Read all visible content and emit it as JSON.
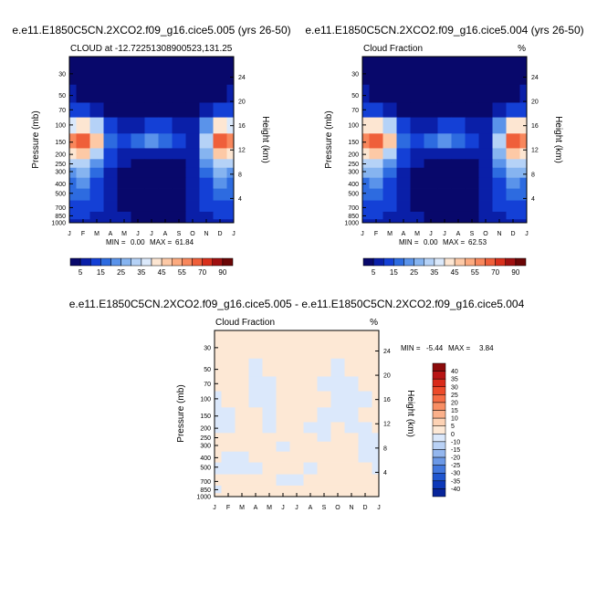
{
  "chart_data": [
    {
      "type": "heatmap",
      "title": "e.e11.E1850C5CN.2XCO2.f09_g16.cice5.005 (yrs 26-50)",
      "subtitle_left": "CLOUD at -12.7225130890052​3,131.25",
      "subtitle_right": "",
      "ylabel": "Pressure (mb)",
      "ylabel_right": "Height (km)",
      "x_ticks": [
        "J",
        "F",
        "M",
        "A",
        "M",
        "J",
        "J",
        "A",
        "S",
        "O",
        "N",
        "D",
        "J"
      ],
      "y_ticks": [
        "30",
        "50",
        "70",
        "100",
        "150",
        "200",
        "250",
        "300",
        "400",
        "500",
        "700",
        "850",
        "1000"
      ],
      "y_ticks_right": [
        "24",
        "20",
        "16",
        "12",
        "8",
        "4"
      ],
      "stats": {
        "min_label": "MIN =",
        "min": "0.00",
        "max_label": "MAX =",
        "max": "61.84"
      },
      "colorbar_labels": [
        "5",
        "15",
        "25",
        "35",
        "45",
        "55",
        "70",
        "90"
      ],
      "colorbar_colors": [
        "#08086b",
        "#0a1fa8",
        "#1440d6",
        "#2d6be0",
        "#5a93ea",
        "#86b4f0",
        "#b5d2f7",
        "#dbe9fb",
        "#fde6d2",
        "#fdc9a6",
        "#fcaa7f",
        "#f8875c",
        "#ef5f3a",
        "#d9301c",
        "#a01010",
        "#6b0606"
      ],
      "values": [
        [
          3,
          3,
          3,
          3,
          3,
          3,
          3,
          3,
          3,
          3,
          3,
          3,
          3
        ],
        [
          5,
          4,
          3,
          3,
          3,
          3,
          3,
          3,
          3,
          3,
          3,
          4,
          5
        ],
        [
          12,
          10,
          6,
          4,
          3,
          3,
          3,
          3,
          3,
          4,
          6,
          10,
          12
        ],
        [
          38,
          42,
          30,
          12,
          6,
          8,
          10,
          10,
          7,
          8,
          20,
          40,
          38
        ],
        [
          55,
          62,
          45,
          15,
          10,
          18,
          24,
          18,
          10,
          9,
          32,
          62,
          55
        ],
        [
          42,
          48,
          34,
          12,
          8,
          6,
          5,
          5,
          6,
          8,
          26,
          48,
          42
        ],
        [
          30,
          34,
          24,
          10,
          5,
          4,
          4,
          4,
          4,
          6,
          20,
          34,
          30
        ],
        [
          24,
          26,
          18,
          9,
          4,
          3,
          3,
          3,
          3,
          5,
          16,
          26,
          24
        ],
        [
          18,
          20,
          14,
          8,
          4,
          3,
          3,
          3,
          3,
          5,
          13,
          20,
          18
        ],
        [
          16,
          17,
          12,
          8,
          4,
          3,
          3,
          3,
          3,
          5,
          12,
          17,
          16
        ],
        [
          13,
          14,
          10,
          7,
          4,
          3,
          3,
          3,
          3,
          5,
          10,
          14,
          13
        ],
        [
          10,
          11,
          9,
          7,
          5,
          4,
          4,
          4,
          4,
          5,
          9,
          11,
          10
        ],
        [
          8,
          9,
          8,
          6,
          5,
          4,
          4,
          4,
          4,
          5,
          8,
          9,
          8
        ]
      ]
    },
    {
      "type": "heatmap",
      "title": "e.e11.E1850C5CN.2XCO2.f09_g16.cice5.004 (yrs 26-50)",
      "subtitle_left": "Cloud Fraction",
      "subtitle_right": "%",
      "ylabel": "Pressure (mb)",
      "ylabel_right": "Height (km)",
      "x_ticks": [
        "J",
        "F",
        "M",
        "A",
        "M",
        "J",
        "J",
        "A",
        "S",
        "O",
        "N",
        "D",
        "J"
      ],
      "y_ticks": [
        "30",
        "50",
        "70",
        "100",
        "150",
        "200",
        "250",
        "300",
        "400",
        "500",
        "700",
        "850",
        "1000"
      ],
      "y_ticks_right": [
        "24",
        "20",
        "16",
        "12",
        "8",
        "4"
      ],
      "stats": {
        "min_label": "MIN =",
        "min": "0.00",
        "max_label": "MAX =",
        "max": "62.53"
      },
      "colorbar_labels": [
        "5",
        "15",
        "25",
        "35",
        "45",
        "55",
        "70",
        "90"
      ],
      "colorbar_colors": [
        "#08086b",
        "#0a1fa8",
        "#1440d6",
        "#2d6be0",
        "#5a93ea",
        "#86b4f0",
        "#b5d2f7",
        "#dbe9fb",
        "#fde6d2",
        "#fdc9a6",
        "#fcaa7f",
        "#f8875c",
        "#ef5f3a",
        "#d9301c",
        "#a01010",
        "#6b0606"
      ],
      "values": [
        [
          3,
          3,
          3,
          3,
          3,
          3,
          3,
          3,
          3,
          3,
          3,
          3,
          3
        ],
        [
          5,
          4,
          3,
          3,
          3,
          3,
          3,
          3,
          3,
          3,
          3,
          4,
          5
        ],
        [
          12,
          10,
          6,
          4,
          3,
          3,
          3,
          3,
          3,
          4,
          6,
          10,
          12
        ],
        [
          40,
          42,
          30,
          12,
          6,
          8,
          10,
          10,
          7,
          8,
          20,
          40,
          40
        ],
        [
          56,
          62,
          45,
          15,
          10,
          18,
          24,
          18,
          10,
          9,
          32,
          62,
          56
        ],
        [
          43,
          48,
          34,
          12,
          8,
          6,
          5,
          5,
          6,
          8,
          26,
          48,
          43
        ],
        [
          31,
          34,
          24,
          10,
          5,
          4,
          4,
          4,
          4,
          6,
          20,
          34,
          31
        ],
        [
          25,
          26,
          18,
          9,
          4,
          3,
          3,
          3,
          3,
          5,
          16,
          26,
          25
        ],
        [
          19,
          20,
          14,
          8,
          4,
          3,
          3,
          3,
          3,
          5,
          13,
          20,
          19
        ],
        [
          17,
          18,
          12,
          8,
          4,
          3,
          3,
          3,
          3,
          5,
          12,
          17,
          17
        ],
        [
          13,
          14,
          10,
          7,
          4,
          3,
          3,
          3,
          3,
          5,
          10,
          14,
          13
        ],
        [
          10,
          11,
          9,
          7,
          5,
          4,
          4,
          4,
          4,
          5,
          9,
          11,
          10
        ],
        [
          8,
          9,
          8,
          6,
          5,
          4,
          4,
          4,
          4,
          5,
          8,
          9,
          8
        ]
      ]
    },
    {
      "type": "heatmap",
      "title": "e.e11.E1850C5CN.2XCO2.f09_g16.cice5.005 - e.e11.E1850C5CN.2XCO2.f09_g16.cice5.004",
      "subtitle_left": "Cloud Fraction",
      "subtitle_right": "%",
      "ylabel": "Pressure (mb)",
      "ylabel_right": "Height (km)",
      "x_ticks": [
        "J",
        "F",
        "M",
        "A",
        "M",
        "J",
        "J",
        "A",
        "S",
        "O",
        "N",
        "D",
        "J"
      ],
      "y_ticks": [
        "30",
        "50",
        "70",
        "100",
        "150",
        "200",
        "250",
        "300",
        "400",
        "500",
        "700",
        "850",
        "1000"
      ],
      "y_ticks_right": [
        "24",
        "20",
        "16",
        "12",
        "8",
        "4"
      ],
      "stats": {
        "min_label": "MIN =",
        "min": "-5.44",
        "max_label": "MAX =",
        "max": "3.84"
      },
      "colorbar_labels": [
        "40",
        "35",
        "30",
        "25",
        "20",
        "15",
        "10",
        "5",
        "0",
        "-10",
        "-15",
        "-20",
        "-25",
        "-30",
        "-35",
        "-40"
      ],
      "colorbar_colors": [
        "#8c0a0a",
        "#b81414",
        "#d92a1a",
        "#ec4a2a",
        "#f56c45",
        "#f88e64",
        "#fbb08a",
        "#fdd2b4",
        "#fde8d5",
        "#dbe8fb",
        "#b9d1f5",
        "#93b6ee",
        "#6b98e6",
        "#4277dd",
        "#1f55cf",
        "#0c38b8",
        "#08259a"
      ],
      "values": [
        [
          1,
          1,
          1,
          1,
          1,
          1,
          1,
          1,
          1,
          1,
          1,
          1,
          1
        ],
        [
          1,
          1,
          1,
          -1,
          1,
          1,
          1,
          1,
          1,
          -1,
          1,
          1,
          1
        ],
        [
          1,
          1,
          1,
          -1,
          -1,
          1,
          1,
          1,
          -1,
          -1,
          -1,
          1,
          1
        ],
        [
          -1,
          1,
          1,
          -1,
          -1,
          1,
          1,
          1,
          1,
          -1,
          -1,
          -1,
          1
        ],
        [
          -1,
          -1,
          1,
          1,
          -1,
          1,
          1,
          1,
          -1,
          -1,
          -1,
          1,
          1
        ],
        [
          -1,
          -1,
          1,
          1,
          -1,
          1,
          1,
          -1,
          -1,
          1,
          -1,
          -1,
          1
        ],
        [
          1,
          1,
          1,
          1,
          1,
          1,
          1,
          1,
          -1,
          1,
          1,
          -1,
          -1
        ],
        [
          1,
          1,
          1,
          1,
          1,
          -1,
          1,
          1,
          1,
          1,
          1,
          -1,
          -1
        ],
        [
          1,
          -1,
          -1,
          1,
          1,
          1,
          1,
          1,
          1,
          1,
          1,
          -1,
          -1
        ],
        [
          -1,
          -1,
          -1,
          -1,
          1,
          1,
          1,
          -1,
          1,
          1,
          1,
          1,
          -1
        ],
        [
          1,
          1,
          1,
          1,
          1,
          -1,
          -1,
          1,
          1,
          1,
          1,
          1,
          1
        ],
        [
          -1,
          1,
          1,
          1,
          1,
          1,
          1,
          1,
          1,
          1,
          1,
          1,
          1
        ],
        [
          1,
          1,
          1,
          1,
          1,
          1,
          1,
          1,
          1,
          1,
          1,
          1,
          1
        ]
      ]
    }
  ]
}
